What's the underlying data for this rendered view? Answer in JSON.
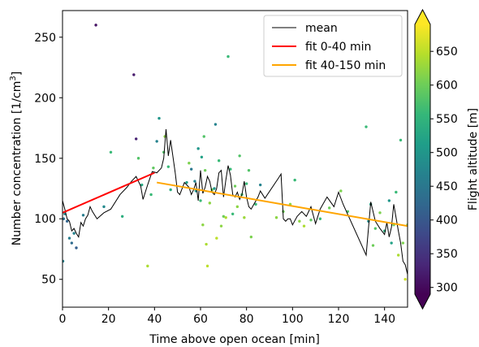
{
  "chart_data": {
    "type": "scatter",
    "xlabel": "Time above open ocean [min]",
    "ylabel_main": "Number concentration [1/cm",
    "ylabel_sup": "3",
    "ylabel_end": "]",
    "xlim": [
      0,
      150
    ],
    "ylim": [
      27,
      272
    ],
    "x_ticks": [
      0,
      20,
      40,
      60,
      80,
      100,
      120,
      140
    ],
    "y_ticks": [
      50,
      100,
      150,
      200,
      250
    ],
    "colorbar": {
      "label": "Flight altitude [m]",
      "range": [
        290,
        690
      ],
      "ticks": [
        300,
        350,
        400,
        450,
        500,
        550,
        600,
        650
      ],
      "colors": [
        "#440154",
        "#482878",
        "#3e4989",
        "#31688e",
        "#26828e",
        "#1f9e89",
        "#35b779",
        "#6ece58",
        "#b5de2b",
        "#fde725"
      ]
    },
    "legend": {
      "placement": "top-right",
      "entries": [
        {
          "label": "mean",
          "color": "#000000"
        },
        {
          "label": "fit 0-40 min",
          "color": "#ff0000"
        },
        {
          "label": "fit 40-150 min",
          "color": "#ffa500"
        }
      ]
    },
    "fit_0_40": {
      "x": [
        0,
        40
      ],
      "y": [
        105,
        138
      ]
    },
    "fit_40_150": {
      "x": [
        41,
        150
      ],
      "y": [
        130,
        94
      ]
    },
    "mean": {
      "x": [
        0,
        1,
        2,
        3,
        4,
        5,
        6,
        7,
        8,
        9,
        10,
        11,
        12,
        13,
        15,
        18,
        21,
        25,
        28,
        30,
        32,
        34,
        35,
        37,
        39,
        41,
        43,
        44,
        45,
        46,
        47,
        49,
        50,
        51,
        53,
        55,
        56,
        57,
        58,
        59,
        60,
        61,
        62,
        63,
        64,
        65,
        66,
        67,
        68,
        69,
        70,
        71,
        72,
        73,
        74,
        75,
        76,
        77,
        78,
        79,
        80,
        81,
        82,
        85,
        86,
        88,
        94,
        95,
        96,
        97,
        98,
        99,
        100,
        102,
        104,
        106,
        108,
        110,
        112,
        115,
        118,
        120,
        122,
        132,
        134,
        136,
        138,
        140,
        141,
        142,
        143,
        144,
        145,
        146,
        147,
        148,
        149,
        150
      ],
      "y": [
        115,
        108,
        100,
        98,
        90,
        92,
        88,
        85,
        97,
        94,
        100,
        103,
        110,
        106,
        100,
        105,
        108,
        120,
        126,
        131,
        135,
        127,
        116,
        128,
        139,
        138,
        142,
        150,
        174,
        152,
        165,
        138,
        122,
        120,
        130,
        126,
        120,
        124,
        130,
        115,
        140,
        121,
        126,
        135,
        131,
        122,
        120,
        125,
        138,
        140,
        118,
        132,
        144,
        136,
        120,
        118,
        122,
        116,
        120,
        131,
        118,
        110,
        108,
        118,
        123,
        117,
        134,
        137,
        100,
        98,
        100,
        100,
        95,
        102,
        106,
        102,
        110,
        96,
        108,
        118,
        110,
        122,
        112,
        70,
        114,
        98,
        92,
        87,
        97,
        85,
        93,
        112,
        101,
        90,
        80,
        65,
        62,
        54
      ]
    },
    "scatter_x": [
      0.2,
      0.5,
      1,
      2,
      3,
      4,
      5,
      6,
      9,
      14.5,
      18,
      21,
      26,
      31,
      32,
      33,
      34.5,
      37,
      38.5,
      39.5,
      41,
      42,
      44,
      44.5,
      46,
      47,
      54,
      55,
      56,
      57.5,
      58,
      59,
      60,
      60.5,
      61,
      61.5,
      62,
      62.5,
      63,
      64,
      65,
      66,
      66.5,
      67,
      68,
      69,
      70,
      71,
      72,
      73,
      74,
      75,
      76,
      77,
      78,
      79,
      80,
      81,
      82,
      84,
      86,
      93,
      96,
      99,
      101,
      103,
      105,
      108,
      112,
      116,
      121,
      124,
      132,
      133,
      134,
      135,
      136,
      138,
      140,
      142,
      143,
      144,
      145,
      146,
      147,
      148,
      149,
      150
    ],
    "scatter_y": [
      65,
      100,
      104,
      98,
      84,
      80,
      88,
      76,
      103,
      260,
      110,
      155,
      102,
      219,
      166,
      150,
      128,
      61,
      120,
      142,
      164,
      183,
      155,
      168,
      143,
      124,
      130,
      146,
      141,
      131,
      123,
      158,
      115,
      151,
      95,
      168,
      140,
      79,
      61,
      113,
      124,
      125,
      178,
      84,
      148,
      94,
      102,
      101,
      234,
      141,
      104,
      127,
      110,
      152,
      120,
      101,
      129,
      140,
      85,
      112,
      128,
      101,
      106,
      112,
      132,
      98,
      94,
      99,
      100,
      109,
      123,
      106,
      176,
      98,
      112,
      78,
      92,
      105,
      90,
      115,
      80,
      95,
      122,
      70,
      165,
      80,
      50,
      95
    ],
    "scatter_alt": [
      470,
      440,
      480,
      420,
      460,
      430,
      470,
      410,
      460,
      310,
      480,
      560,
      540,
      320,
      330,
      580,
      530,
      640,
      560,
      590,
      470,
      500,
      580,
      620,
      560,
      540,
      520,
      610,
      450,
      470,
      490,
      500,
      560,
      520,
      620,
      580,
      600,
      640,
      650,
      620,
      600,
      500,
      470,
      650,
      560,
      620,
      600,
      640,
      560,
      560,
      560,
      600,
      620,
      580,
      570,
      630,
      560,
      580,
      610,
      560,
      470,
      620,
      600,
      620,
      560,
      620,
      640,
      590,
      560,
      600,
      610,
      580,
      560,
      480,
      520,
      600,
      580,
      610,
      540,
      500,
      520,
      600,
      560,
      640,
      560,
      610,
      660,
      620
    ]
  }
}
